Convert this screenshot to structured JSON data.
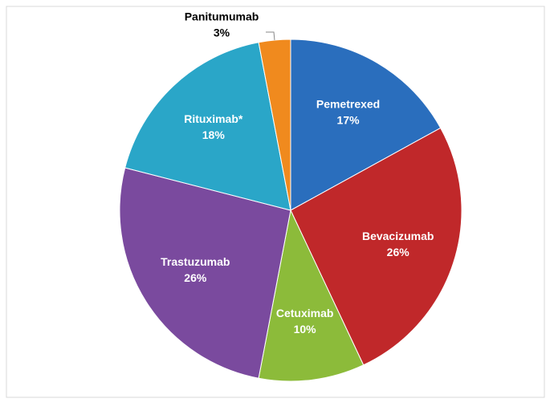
{
  "chart_data": {
    "type": "pie",
    "categories": [
      "Pemetrexed",
      "Bevacizumab",
      "Cetuximab",
      "Trastuzumab",
      "Rituximab*",
      "Panitumumab"
    ],
    "values": [
      17,
      26,
      10,
      26,
      18,
      3
    ],
    "value_labels": [
      "17%",
      "26%",
      "10%",
      "26%",
      "18%",
      "3%"
    ],
    "colors": [
      "#2a6ebd",
      "#c0282a",
      "#8cbb3a",
      "#7a4a9e",
      "#2aa6c8",
      "#f08a1e"
    ]
  }
}
